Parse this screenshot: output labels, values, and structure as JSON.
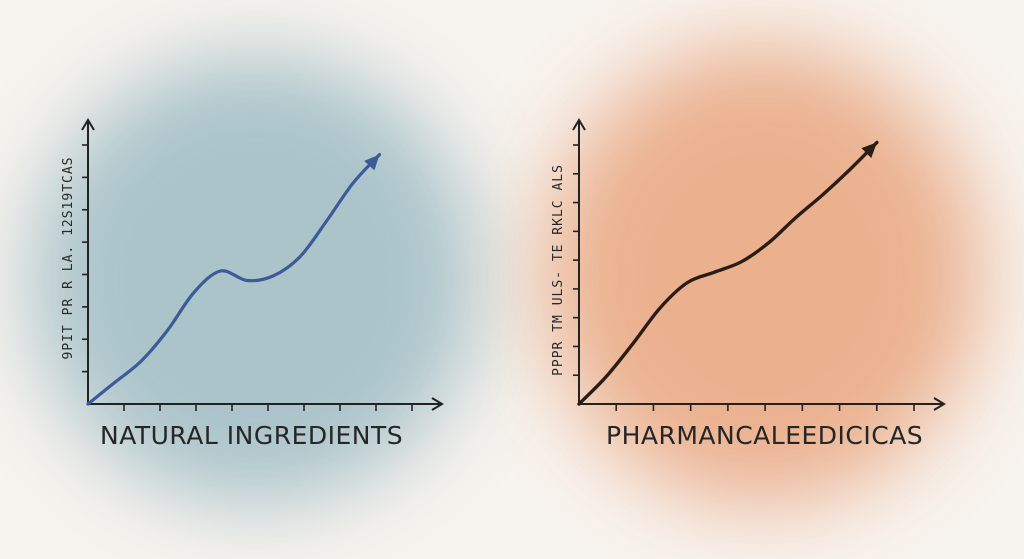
{
  "background": {
    "base_color": "#f7f3ee",
    "left_wash_color": "#9dbcc4",
    "right_wash_color": "#e9a67f"
  },
  "chart_data": [
    {
      "type": "line",
      "title": "NATURAL INGREDIENTS",
      "ylabel": "9PIT PR R LA. 12S19TCAS",
      "xlabel": "",
      "line_color": "#3d5a99",
      "axis_color": "#222222",
      "x": [
        0,
        1,
        2,
        3,
        4,
        5,
        6,
        7,
        8,
        9,
        10,
        11
      ],
      "y": [
        0,
        0.09,
        0.18,
        0.31,
        0.47,
        0.56,
        0.52,
        0.54,
        0.62,
        0.77,
        0.93,
        1.05
      ],
      "xlim": [
        0,
        12
      ],
      "ylim": [
        0,
        1.2
      ],
      "x_ticks": 9,
      "y_ticks": 8,
      "arrow_end": true,
      "grid": false
    },
    {
      "type": "line",
      "title": "PHARMANCALEEDICICAS",
      "ylabel": "PPPR TM ULS- TE RKLC ALS",
      "xlabel": "",
      "line_color": "#2b1d16",
      "axis_color": "#222222",
      "x": [
        0,
        1,
        2,
        3,
        4,
        5,
        6,
        7,
        8,
        9,
        10,
        11
      ],
      "y": [
        0,
        0.13,
        0.29,
        0.46,
        0.58,
        0.63,
        0.68,
        0.77,
        0.89,
        1.0,
        1.12,
        1.25
      ],
      "xlim": [
        0,
        12
      ],
      "ylim": [
        0,
        1.4
      ],
      "x_ticks": 9,
      "y_ticks": 9,
      "arrow_end": true,
      "grid": false
    }
  ]
}
